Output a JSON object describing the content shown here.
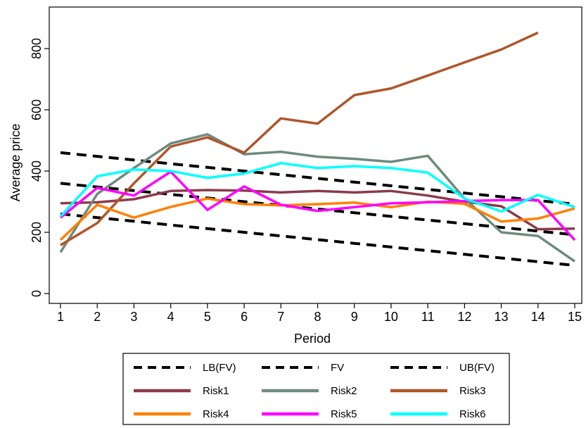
{
  "chart_data": {
    "type": "line",
    "title": "",
    "xlabel": "Period",
    "ylabel": "Average price",
    "x": [
      1,
      2,
      3,
      4,
      5,
      6,
      7,
      8,
      9,
      10,
      11,
      12,
      13,
      14,
      15
    ],
    "xlim": [
      1,
      15
    ],
    "ylim": [
      -20,
      940
    ],
    "yticks": [
      0,
      200,
      400,
      600,
      800
    ],
    "grid": false,
    "legend_placement": "bottom",
    "series": [
      {
        "name": "LB(FV)",
        "style": "dashed",
        "color": "#000000",
        "values": [
          260,
          248,
          236,
          224,
          212,
          200,
          188,
          176,
          164,
          152,
          140,
          128,
          116,
          104,
          92
        ]
      },
      {
        "name": "FV",
        "style": "dashed",
        "color": "#000000",
        "values": [
          360,
          348,
          336,
          324,
          312,
          300,
          288,
          276,
          264,
          252,
          240,
          228,
          216,
          204,
          192
        ]
      },
      {
        "name": "UB(FV)",
        "style": "dashed",
        "color": "#000000",
        "values": [
          460,
          448,
          436,
          424,
          412,
          400,
          388,
          376,
          364,
          352,
          340,
          328,
          316,
          304,
          292
        ]
      },
      {
        "name": "Risk1",
        "style": "solid",
        "color": "#8B3A4A",
        "values": [
          295,
          298,
          308,
          335,
          338,
          336,
          330,
          335,
          330,
          335,
          320,
          300,
          285,
          210,
          212
        ]
      },
      {
        "name": "Risk2",
        "style": "solid",
        "color": "#6E8B7D",
        "values": [
          135,
          325,
          410,
          490,
          520,
          455,
          463,
          447,
          440,
          430,
          450,
          310,
          200,
          188,
          105
        ]
      },
      {
        "name": "Risk3",
        "style": "solid",
        "color": "#B0552A",
        "values": [
          158,
          230,
          360,
          480,
          510,
          460,
          572,
          555,
          648,
          670,
          712,
          755,
          797,
          852,
          null
        ]
      },
      {
        "name": "Risk4",
        "style": "solid",
        "color": "#FF8000",
        "values": [
          175,
          290,
          248,
          283,
          310,
          292,
          288,
          292,
          297,
          282,
          300,
          293,
          235,
          245,
          278
        ]
      },
      {
        "name": "Risk5",
        "style": "solid",
        "color": "#FF00FF",
        "values": [
          248,
          345,
          320,
          398,
          273,
          350,
          290,
          270,
          282,
          295,
          298,
          302,
          305,
          305,
          175
        ]
      },
      {
        "name": "Risk6",
        "style": "solid",
        "color": "#00FFFF",
        "values": [
          252,
          383,
          405,
          400,
          378,
          392,
          426,
          410,
          416,
          410,
          395,
          310,
          268,
          322,
          282
        ]
      }
    ]
  }
}
